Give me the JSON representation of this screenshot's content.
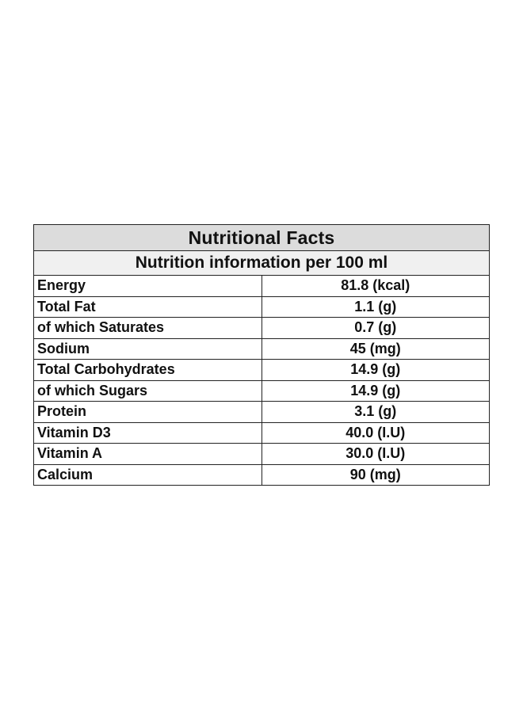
{
  "table": {
    "title": "Nutritional Facts",
    "subtitle": "Nutrition information per 100 ml",
    "rows": [
      {
        "name": "Energy",
        "value": "81.8 (kcal)"
      },
      {
        "name": "Total Fat",
        "value": "1.1 (g)"
      },
      {
        "name": "of which Saturates",
        "value": "0.7 (g)"
      },
      {
        "name": "Sodium",
        "value": "45 (mg)"
      },
      {
        "name": "Total Carbohydrates",
        "value": "14.9 (g)"
      },
      {
        "name": "of which Sugars",
        "value": "14.9 (g)"
      },
      {
        "name": "Protein",
        "value": "3.1 (g)"
      },
      {
        "name": "Vitamin D3",
        "value": "40.0 (I.U)"
      },
      {
        "name": "Vitamin A",
        "value": "30.0 (I.U)"
      },
      {
        "name": "Calcium",
        "value": "90 (mg)"
      }
    ]
  }
}
